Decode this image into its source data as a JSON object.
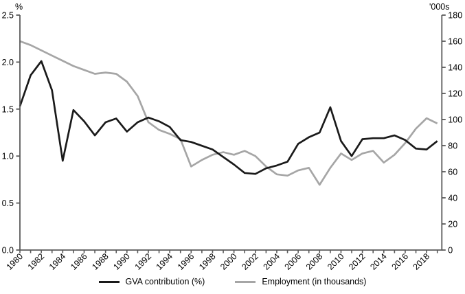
{
  "chart_data": {
    "type": "line",
    "title": "",
    "axis_color": "#595959",
    "background": "#ffffff",
    "grid": false,
    "legend_position": "bottom-center",
    "x_years": [
      1980,
      1981,
      1982,
      1983,
      1984,
      1985,
      1986,
      1987,
      1988,
      1989,
      1990,
      1991,
      1992,
      1993,
      1994,
      1995,
      1996,
      1997,
      1998,
      1999,
      2000,
      2001,
      2002,
      2003,
      2004,
      2005,
      2006,
      2007,
      2008,
      2009,
      2010,
      2011,
      2012,
      2013,
      2014,
      2015,
      2016,
      2017,
      2018,
      2019
    ],
    "x_tick_label_every": 2,
    "left_axis": {
      "title": "%",
      "min": 0,
      "max": 2.5,
      "ticks": [
        "0.0",
        "0.5",
        "1.0",
        "1.5",
        "2.0",
        "2.5"
      ]
    },
    "right_axis": {
      "title": "'000s",
      "min": 0,
      "max": 180,
      "ticks": [
        0,
        20,
        40,
        60,
        80,
        100,
        120,
        140,
        160,
        180
      ]
    },
    "series": [
      {
        "name": "GVA contribution (%)",
        "axis": "left",
        "color": "#1a1a1a",
        "values": [
          1.53,
          1.86,
          2.01,
          1.7,
          0.95,
          1.49,
          1.37,
          1.22,
          1.36,
          1.4,
          1.26,
          1.36,
          1.41,
          1.37,
          1.31,
          1.17,
          1.15,
          1.11,
          1.07,
          0.99,
          0.91,
          0.82,
          0.81,
          0.87,
          0.9,
          0.94,
          1.13,
          1.2,
          1.25,
          1.52,
          1.16,
          1.0,
          1.18,
          1.19,
          1.19,
          1.22,
          1.17,
          1.08,
          1.07,
          1.16
        ]
      },
      {
        "name": "Employment (in thousands)",
        "axis": "right",
        "color": "#a6a6a6",
        "values": [
          160,
          157,
          153,
          149,
          145,
          141,
          138,
          135,
          136,
          135,
          129,
          118,
          98,
          92,
          89,
          85,
          64,
          69,
          73,
          75,
          73,
          76,
          72,
          64,
          58,
          57,
          61,
          63,
          50,
          63,
          74,
          69,
          74,
          76,
          67,
          73,
          82,
          93,
          101,
          97
        ]
      }
    ]
  }
}
